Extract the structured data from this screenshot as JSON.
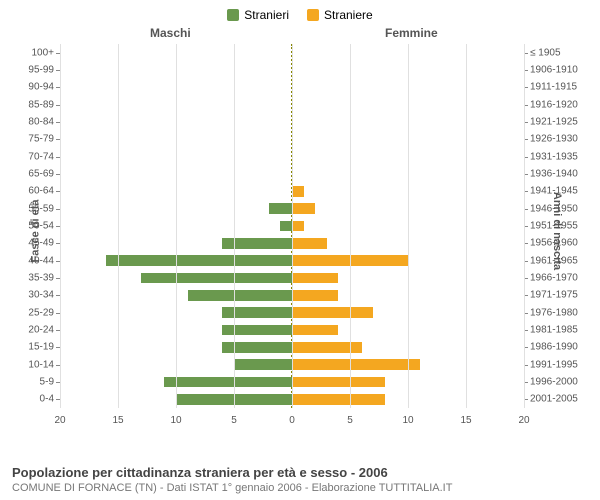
{
  "legend": {
    "male": {
      "label": "Stranieri",
      "color": "#6a994e"
    },
    "female": {
      "label": "Straniere",
      "color": "#f4a720"
    }
  },
  "gender_headers": {
    "left": "Maschi",
    "right": "Femmine"
  },
  "axis_titles": {
    "left": "Fasce di età",
    "right": "Anni di nascita"
  },
  "x_axis": {
    "max": 20,
    "ticks": [
      20,
      15,
      10,
      5,
      0,
      5,
      10,
      15,
      20
    ],
    "tick_labels": [
      "20",
      "15",
      "10",
      "5",
      "0",
      "5",
      "10",
      "15",
      "20"
    ],
    "grid_color": "#e0e0e0"
  },
  "chart": {
    "bar_color_left": "#6a994e",
    "bar_color_right": "#f4a720",
    "center_line_color": "#888800",
    "background": "#ffffff",
    "label_fontsize": 10
  },
  "rows": [
    {
      "age": "100+",
      "year": "≤ 1905",
      "m": 0,
      "f": 0
    },
    {
      "age": "95-99",
      "year": "1906-1910",
      "m": 0,
      "f": 0
    },
    {
      "age": "90-94",
      "year": "1911-1915",
      "m": 0,
      "f": 0
    },
    {
      "age": "85-89",
      "year": "1916-1920",
      "m": 0,
      "f": 0
    },
    {
      "age": "80-84",
      "year": "1921-1925",
      "m": 0,
      "f": 0
    },
    {
      "age": "75-79",
      "year": "1926-1930",
      "m": 0,
      "f": 0
    },
    {
      "age": "70-74",
      "year": "1931-1935",
      "m": 0,
      "f": 0
    },
    {
      "age": "65-69",
      "year": "1936-1940",
      "m": 0,
      "f": 0
    },
    {
      "age": "60-64",
      "year": "1941-1945",
      "m": 0,
      "f": 1
    },
    {
      "age": "55-59",
      "year": "1946-1950",
      "m": 2,
      "f": 2
    },
    {
      "age": "50-54",
      "year": "1951-1955",
      "m": 1,
      "f": 1
    },
    {
      "age": "45-49",
      "year": "1956-1960",
      "m": 6,
      "f": 3
    },
    {
      "age": "40-44",
      "year": "1961-1965",
      "m": 16,
      "f": 10
    },
    {
      "age": "35-39",
      "year": "1966-1970",
      "m": 13,
      "f": 4
    },
    {
      "age": "30-34",
      "year": "1971-1975",
      "m": 9,
      "f": 4
    },
    {
      "age": "25-29",
      "year": "1976-1980",
      "m": 6,
      "f": 7
    },
    {
      "age": "20-24",
      "year": "1981-1985",
      "m": 6,
      "f": 4
    },
    {
      "age": "15-19",
      "year": "1986-1990",
      "m": 6,
      "f": 6
    },
    {
      "age": "10-14",
      "year": "1991-1995",
      "m": 5,
      "f": 11
    },
    {
      "age": "5-9",
      "year": "1996-2000",
      "m": 11,
      "f": 8
    },
    {
      "age": "0-4",
      "year": "2001-2005",
      "m": 10,
      "f": 8
    }
  ],
  "footer": {
    "title": "Popolazione per cittadinanza straniera per età e sesso - 2006",
    "subtitle": "COMUNE DI FORNACE (TN) - Dati ISTAT 1° gennaio 2006 - Elaborazione TUTTITALIA.IT"
  }
}
